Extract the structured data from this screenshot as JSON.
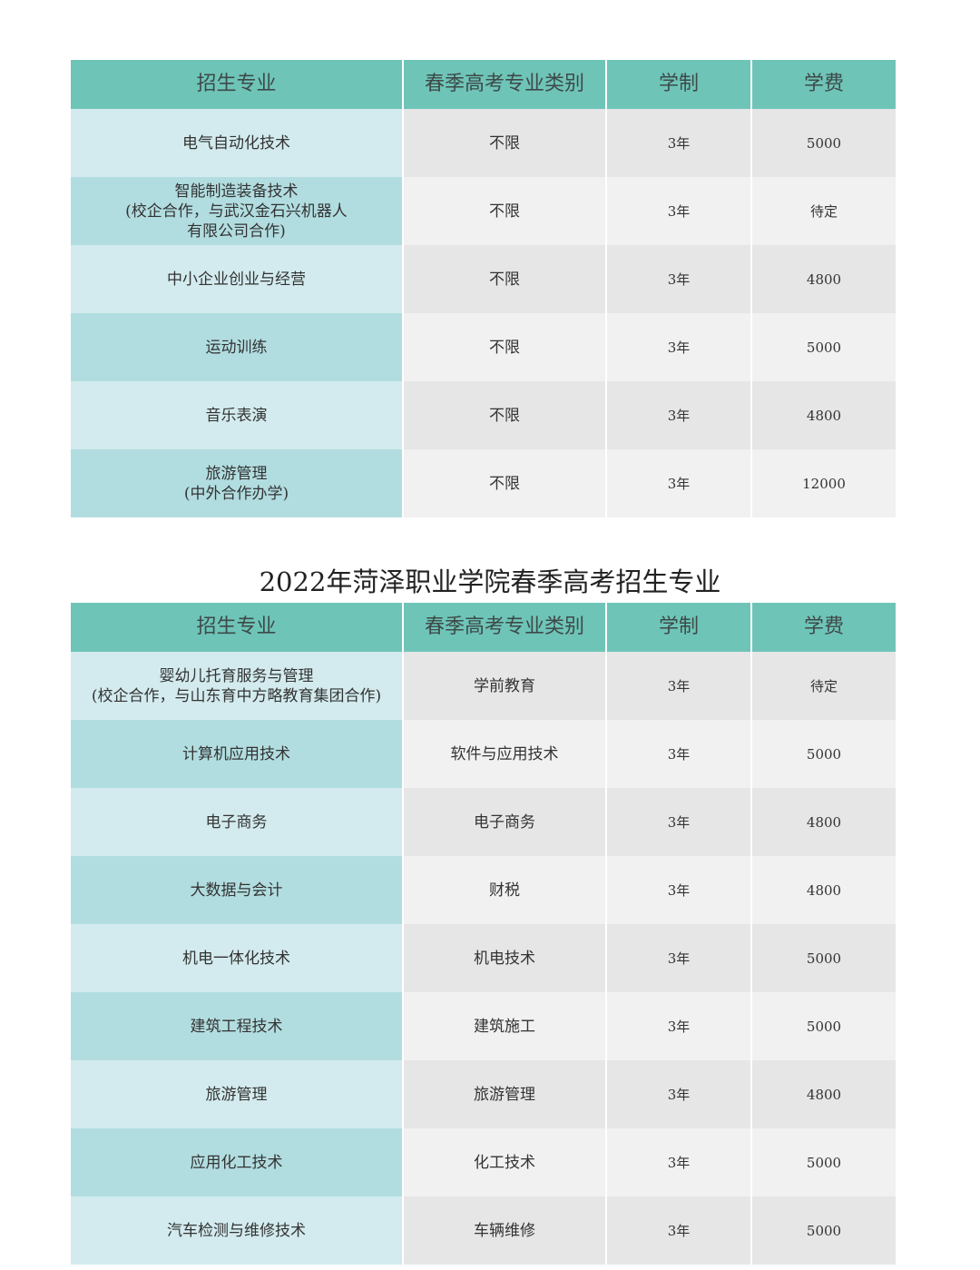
{
  "headers": [
    "招生专业",
    "春季高考专业类别",
    "学制",
    "学费"
  ],
  "colors": {
    "header": "#6fc4b8",
    "major_odd": "#d3ebee",
    "major_even": "#b2dde0",
    "cell_odd": "#e6e6e6",
    "cell_even": "#f1f1f1"
  },
  "table1": {
    "rows": [
      [
        "电气自动化技术",
        "不限",
        "3年",
        "5000"
      ],
      [
        "智能制造装备技术\n(校企合作，与武汉金石兴机器人\n有限公司合作)",
        "不限",
        "3年",
        "待定"
      ],
      [
        "中小企业创业与经营",
        "不限",
        "3年",
        "4800"
      ],
      [
        "运动训练",
        "不限",
        "3年",
        "5000"
      ],
      [
        "音乐表演",
        "不限",
        "3年",
        "4800"
      ],
      [
        "旅游管理\n(中外合作办学)",
        "不限",
        "3年",
        "12000"
      ]
    ]
  },
  "table2": {
    "title": "2022年菏泽职业学院春季高考招生专业",
    "rows": [
      [
        "婴幼儿托育服务与管理\n(校企合作，与山东育中方略教育集团合作)",
        "学前教育",
        "3年",
        "待定"
      ],
      [
        "计算机应用技术",
        "软件与应用技术",
        "3年",
        "5000"
      ],
      [
        "电子商务",
        "电子商务",
        "3年",
        "4800"
      ],
      [
        "大数据与会计",
        "财税",
        "3年",
        "4800"
      ],
      [
        "机电一体化技术",
        "机电技术",
        "3年",
        "5000"
      ],
      [
        "建筑工程技术",
        "建筑施工",
        "3年",
        "5000"
      ],
      [
        "旅游管理",
        "旅游管理",
        "3年",
        "4800"
      ],
      [
        "应用化工技术",
        "化工技术",
        "3年",
        "5000"
      ],
      [
        "汽车检测与维修技术",
        "车辆维修",
        "3年",
        "5000"
      ]
    ]
  }
}
